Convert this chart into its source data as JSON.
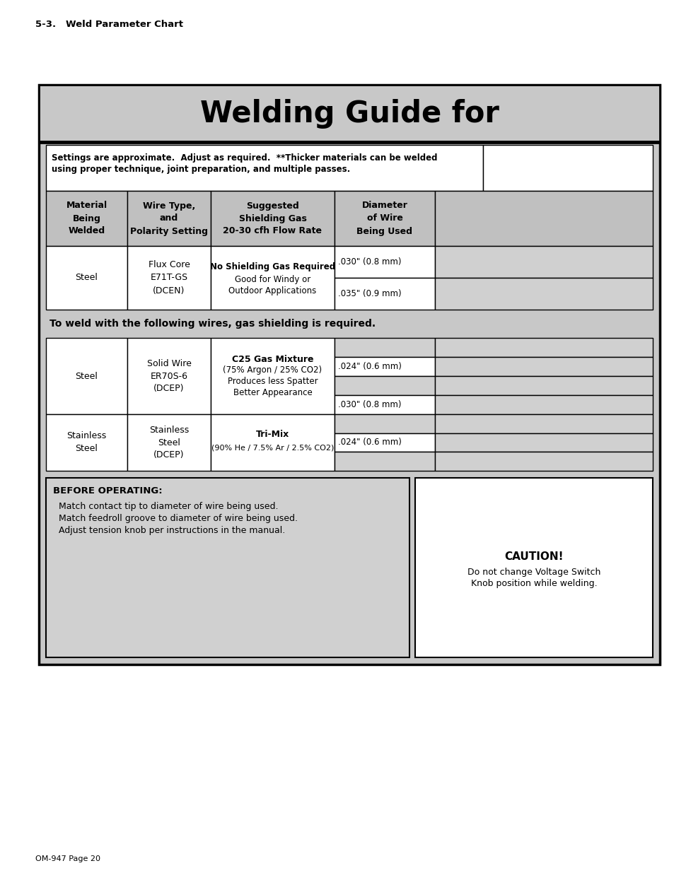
{
  "page_label": "5-3.   Weld Parameter Chart",
  "footer": "OM-947 Page 20",
  "title": "Welding Guide for",
  "settings_note_line1": "Settings are approximate.  Adjust as required.  **Thicker materials can be welded",
  "settings_note_line2": "using proper technique, joint preparation, and multiple passes.",
  "col_headers": [
    "Material\nBeing\nWelded",
    "Wire Type,\nand\nPolarity Setting",
    "Suggested\nShielding Gas\n20-30 cfh Flow Rate",
    "Diameter\nof Wire\nBeing Used"
  ],
  "gas_required_note": "To weld with the following wires, gas shielding is required.",
  "before_operating_title": "BEFORE OPERATING:",
  "before_operating_lines": [
    "Match contact tip to diameter of wire being used.",
    "Match feedroll groove to diameter of wire being used.",
    "Adjust tension knob per instructions in the manual."
  ],
  "caution_title": "CAUTION!",
  "caution_lines": [
    "Do not change Voltage Switch",
    "Knob position while welding."
  ],
  "bg_outer": "#c8c8c8",
  "bg_white": "#ffffff",
  "bg_header_gray": "#c0c0c0",
  "bg_cell_gray": "#d0d0d0",
  "border_color": "#000000"
}
